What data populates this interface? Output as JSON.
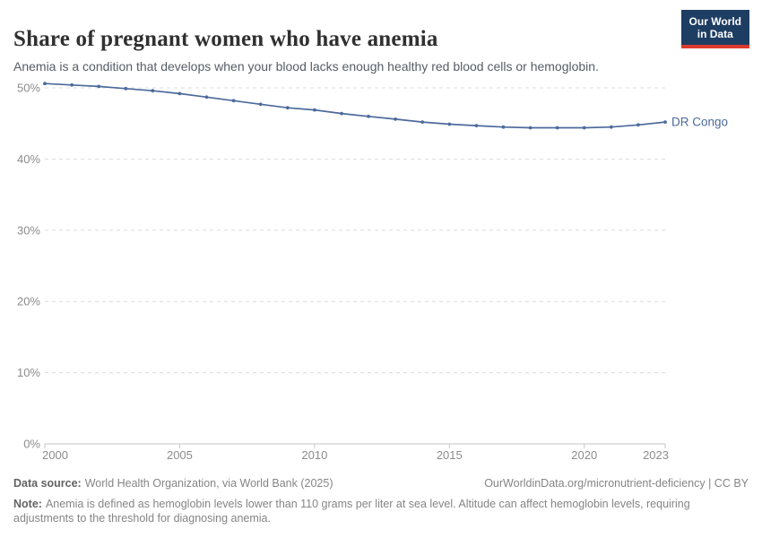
{
  "header": {
    "title": "Share of pregnant women who have anemia",
    "subtitle": "Anemia is a condition that develops when your blood lacks enough healthy red blood cells or hemoglobin.",
    "logo_line1": "Our World",
    "logo_line2": "in Data"
  },
  "chart_data": {
    "type": "line",
    "title": "Share of pregnant women who have anemia",
    "entity": "DR Congo",
    "x": [
      2000,
      2001,
      2002,
      2003,
      2004,
      2005,
      2006,
      2007,
      2008,
      2009,
      2010,
      2011,
      2012,
      2013,
      2014,
      2015,
      2016,
      2017,
      2018,
      2019,
      2020,
      2021,
      2022,
      2023
    ],
    "series": [
      {
        "name": "DR Congo",
        "color": "#4c6a9c",
        "values": [
          50.6,
          50.4,
          50.2,
          49.9,
          49.6,
          49.2,
          48.7,
          48.2,
          47.7,
          47.2,
          46.9,
          46.4,
          46.0,
          45.6,
          45.2,
          44.9,
          44.7,
          44.5,
          44.4,
          44.4,
          44.4,
          44.5,
          44.8,
          45.2
        ]
      }
    ],
    "x_ticks": [
      2000,
      2005,
      2010,
      2015,
      2020,
      2023
    ],
    "y_ticks": [
      0,
      10,
      20,
      30,
      40,
      50
    ],
    "y_suffix": "%",
    "xlim": [
      2000,
      2023
    ],
    "ylim": [
      0,
      50
    ],
    "grid": "horizontal-dashed",
    "legend_position": "end-of-line"
  },
  "footer": {
    "data_source_label": "Data source:",
    "data_source_text": "World Health Organization, via World Bank (2025)",
    "credit": "OurWorldinData.org/micronutrient-deficiency | CC BY",
    "note_label": "Note:",
    "note_text": "Anemia is defined as hemoglobin levels lower than 110 grams per liter at sea level. Altitude can affect hemoglobin levels, requiring adjustments to the threshold for diagnosing anemia."
  },
  "colors": {
    "line": "#4c6a9c",
    "logo_navy": "#1d3d63",
    "logo_red": "#dc3a2c",
    "gridline": "#dcdcdc",
    "axis": "#c6c6c6",
    "tick_label": "#8c8c8c",
    "title": "#303030",
    "subtitle": "#555d66",
    "footer_text": "#858585"
  }
}
